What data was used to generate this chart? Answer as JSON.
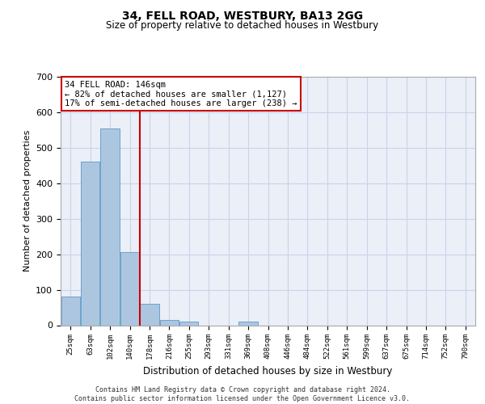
{
  "title": "34, FELL ROAD, WESTBURY, BA13 2GG",
  "subtitle": "Size of property relative to detached houses in Westbury",
  "xlabel": "Distribution of detached houses by size in Westbury",
  "ylabel": "Number of detached properties",
  "bar_labels": [
    "25sqm",
    "63sqm",
    "102sqm",
    "140sqm",
    "178sqm",
    "216sqm",
    "255sqm",
    "293sqm",
    "331sqm",
    "369sqm",
    "408sqm",
    "446sqm",
    "484sqm",
    "522sqm",
    "561sqm",
    "599sqm",
    "637sqm",
    "675sqm",
    "714sqm",
    "752sqm",
    "790sqm"
  ],
  "bar_values": [
    80,
    460,
    555,
    205,
    60,
    15,
    10,
    0,
    0,
    10,
    0,
    0,
    0,
    0,
    0,
    0,
    0,
    0,
    0,
    0,
    0
  ],
  "bar_color": "#adc6e0",
  "bar_edge_color": "#5a9ac5",
  "grid_color": "#c8d4e8",
  "background_color": "#eaeff8",
  "red_line_x": 3.5,
  "annotation_line1": "34 FELL ROAD: 146sqm",
  "annotation_line2": "← 82% of detached houses are smaller (1,127)",
  "annotation_line3": "17% of semi-detached houses are larger (238) →",
  "annotation_box_color": "#ffffff",
  "annotation_text_color": "#000000",
  "red_line_color": "#cc0000",
  "ylim": [
    0,
    700
  ],
  "yticks": [
    0,
    100,
    200,
    300,
    400,
    500,
    600,
    700
  ],
  "footer_line1": "Contains HM Land Registry data © Crown copyright and database right 2024.",
  "footer_line2": "Contains public sector information licensed under the Open Government Licence v3.0."
}
